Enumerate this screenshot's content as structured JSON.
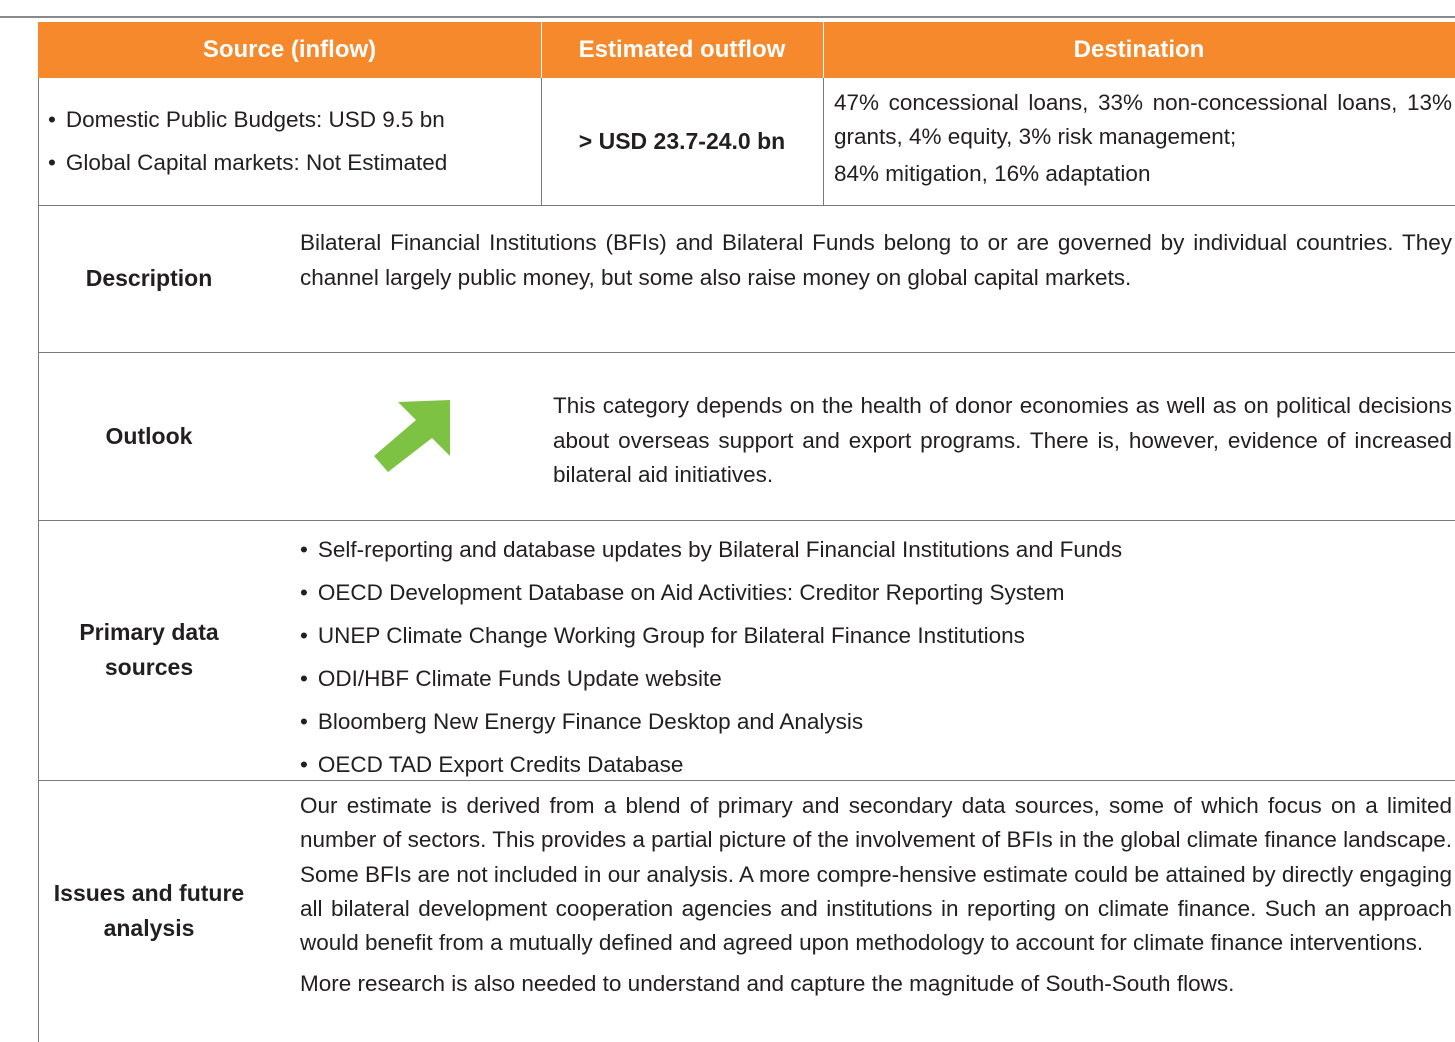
{
  "table": {
    "header": [
      "Source (inflow)",
      "Estimated outflow",
      "Destination"
    ],
    "summary": {
      "source": [
        "Domestic Public Budgets: USD 9.5 bn",
        "Global Capital markets: Not Estimated"
      ],
      "outflow": "> USD 23.7-24.0 bn",
      "destination": [
        "47% concessional loans, 33% non-concessional loans, 13% grants, 4% equity, 3% risk management;",
        "84% mitigation, 16% adaptation"
      ]
    },
    "description": {
      "label": "Description",
      "text": "Bilateral Financial Institutions (BFIs) and Bilateral Funds belong to or are governed by individual countries. They channel largely public money, but some also raise money on global capital markets."
    },
    "outlook": {
      "label": "Outlook",
      "text": "This category depends on the health of donor economies as well as on political decisions about overseas support and export programs. There is, however, evidence of increased bilateral aid initiatives."
    },
    "sources": {
      "label": "Primary data sources",
      "items": [
        "Self-reporting and database updates by Bilateral Financial Institutions and Funds",
        "OECD Development Database on Aid Activities: Creditor Reporting System",
        "UNEP Climate Change Working Group for Bilateral Finance Institutions",
        "ODI/HBF Climate Funds Update website",
        "Bloomberg New Energy Finance Desktop and Analysis",
        "OECD TAD Export Credits Database"
      ]
    },
    "issues": {
      "label": "Issues and future analysis",
      "paragraphs": [
        "Our estimate is derived from a blend of primary and secondary data sources, some of which focus on a limited number of sectors. This provides a partial picture of the involvement of BFIs in the global climate finance landscape. Some BFIs are not included in our analysis. A more compre-hensive estimate could be attained by directly engaging all bilateral development cooperation agencies and institutions in reporting on climate finance. Such an approach would benefit from a mutually defined and agreed upon methodology to account for climate finance interventions.",
        "More research is also needed to understand and capture the magnitude of South-South flows."
      ]
    }
  }
}
